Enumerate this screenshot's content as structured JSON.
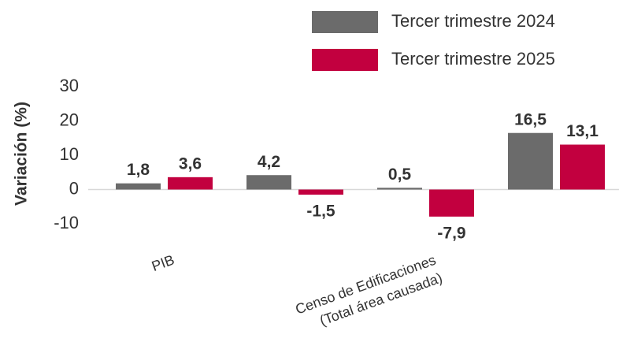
{
  "chart_data": {
    "type": "bar",
    "y_label": "Variación (%)",
    "categories": [
      "PIB",
      null,
      "Censo de Edificaciones\n(Total área causada)",
      null
    ],
    "series": [
      {
        "name": "Tercer trimestre 2024",
        "color": "#6b6b6b",
        "values": [
          1.8,
          4.2,
          0.5,
          16.5
        ],
        "value_labels": [
          "1,8",
          "4,2",
          "0,5",
          "16,5"
        ]
      },
      {
        "name": "Tercer trimestre 2025",
        "color": "#c2003f",
        "values": [
          3.6,
          -1.5,
          -7.9,
          13.1
        ],
        "value_labels": [
          "3,6",
          "-1,5",
          "-7,9",
          "13,1"
        ]
      }
    ],
    "ylim": [
      -10,
      30
    ],
    "yticks": [
      -10,
      0,
      10,
      20,
      30
    ],
    "legend": "top-right"
  }
}
